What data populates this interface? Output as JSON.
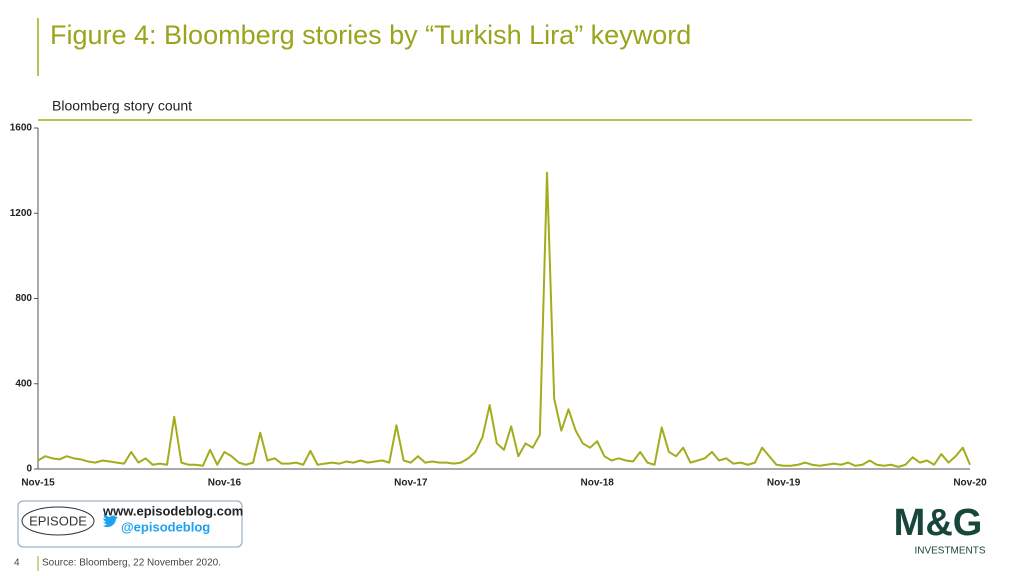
{
  "chart_data": {
    "type": "line",
    "title": "Figure 4: Bloomberg stories by “Turkish Lira” keyword",
    "subtitle": "Bloomberg story count",
    "categories": [
      "Nov-15",
      null,
      null,
      null,
      null,
      null,
      null,
      null,
      null,
      null,
      null,
      null,
      null,
      null,
      null,
      null,
      null,
      null,
      null,
      null,
      null,
      null,
      null,
      null,
      null,
      null,
      "Nov-16",
      null,
      null,
      null,
      null,
      null,
      null,
      null,
      null,
      null,
      null,
      null,
      null,
      null,
      null,
      null,
      null,
      null,
      null,
      null,
      null,
      null,
      null,
      null,
      null,
      null,
      "Nov-17",
      null,
      null,
      null,
      null,
      null,
      null,
      null,
      null,
      null,
      null,
      null,
      null,
      null,
      null,
      null,
      null,
      null,
      null,
      null,
      null,
      null,
      null,
      null,
      null,
      null,
      "Nov-18",
      null,
      null,
      null,
      null,
      null,
      null,
      null,
      null,
      null,
      null,
      null,
      null,
      null,
      null,
      null,
      null,
      null,
      null,
      null,
      null,
      null,
      null,
      null,
      null,
      null,
      "Nov-19",
      null,
      null,
      null,
      null,
      null,
      null,
      null,
      null,
      null,
      null,
      null,
      null,
      null,
      null,
      null,
      null,
      null,
      null,
      null,
      null,
      null,
      null,
      null,
      null,
      null,
      "Nov-20"
    ],
    "values": [
      40,
      60,
      50,
      45,
      60,
      50,
      45,
      35,
      30,
      40,
      35,
      30,
      25,
      80,
      30,
      50,
      20,
      25,
      20,
      245,
      30,
      20,
      20,
      15,
      90,
      20,
      80,
      60,
      30,
      20,
      30,
      170,
      40,
      50,
      25,
      25,
      30,
      20,
      85,
      20,
      25,
      30,
      25,
      35,
      30,
      40,
      30,
      35,
      40,
      30,
      205,
      40,
      30,
      60,
      30,
      35,
      30,
      30,
      25,
      30,
      50,
      80,
      150,
      300,
      120,
      90,
      200,
      60,
      120,
      100,
      160,
      1390,
      330,
      180,
      280,
      180,
      120,
      100,
      130,
      60,
      40,
      50,
      40,
      35,
      80,
      30,
      20,
      195,
      80,
      60,
      100,
      30,
      40,
      50,
      80,
      40,
      50,
      25,
      30,
      20,
      30,
      100,
      60,
      20,
      15,
      15,
      20,
      30,
      20,
      15,
      20,
      25,
      20,
      30,
      15,
      20,
      40,
      20,
      15,
      20,
      10,
      20,
      55,
      30,
      40,
      20,
      70,
      30,
      60,
      100,
      20
    ],
    "color": "#a3ad1c",
    "ylim": [
      0,
      1600
    ],
    "yticks": [
      0,
      400,
      800,
      1200,
      1600
    ]
  },
  "page": {
    "number": "4",
    "source": "Source: Bloomberg,  22 November  2020.",
    "episode_logo": "EPISODE",
    "website": "www.episodeblog.com",
    "twitter": "@episodeblog",
    "brand": "M&G",
    "brand_sub": "INVESTMENTS"
  }
}
